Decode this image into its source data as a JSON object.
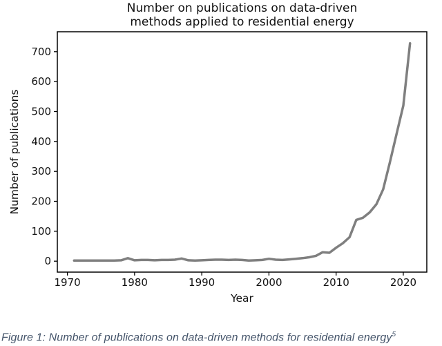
{
  "figure": {
    "title_line1": "Number on publications on data-driven",
    "title_line2": "methods applied to residential energy",
    "xlabel": "Year",
    "ylabel": "Number of publications",
    "caption": "Figure 1: Number of publications on data-driven methods for residential energy",
    "caption_superscript": "5",
    "caption_color": "#44546A",
    "line_color": "#7f7f7f",
    "axis_color": "#000000",
    "background_color": "#ffffff"
  },
  "chart_data": {
    "type": "line",
    "title": "Number on publications on data-driven methods applied to residential energy",
    "xlabel": "Year",
    "ylabel": "Number of publications",
    "grid": false,
    "legend": null,
    "xlim": [
      1968.5,
      2023.5
    ],
    "ylim": [
      -36.5,
      766.5
    ],
    "xticks": [
      1970,
      1980,
      1990,
      2000,
      2010,
      2020
    ],
    "yticks": [
      0,
      100,
      200,
      300,
      400,
      500,
      600,
      700
    ],
    "x": [
      1971,
      1972,
      1973,
      1974,
      1975,
      1976,
      1977,
      1978,
      1979,
      1980,
      1981,
      1982,
      1983,
      1984,
      1985,
      1986,
      1987,
      1988,
      1989,
      1990,
      1991,
      1992,
      1993,
      1994,
      1995,
      1996,
      1997,
      1998,
      1999,
      2000,
      2001,
      2002,
      2003,
      2004,
      2005,
      2006,
      2007,
      2008,
      2009,
      2010,
      2011,
      2012,
      2013,
      2014,
      2015,
      2016,
      2017,
      2018,
      2019,
      2020,
      2021
    ],
    "series": [
      {
        "name": "publications",
        "values": [
          2,
          2,
          2,
          2,
          2,
          2,
          2,
          3,
          10,
          3,
          4,
          4,
          3,
          4,
          4,
          5,
          9,
          3,
          2,
          3,
          4,
          5,
          5,
          4,
          5,
          4,
          2,
          3,
          4,
          8,
          5,
          4,
          6,
          8,
          10,
          13,
          18,
          30,
          28,
          45,
          60,
          80,
          138,
          145,
          163,
          190,
          240,
          330,
          425,
          520,
          728
        ]
      }
    ]
  }
}
